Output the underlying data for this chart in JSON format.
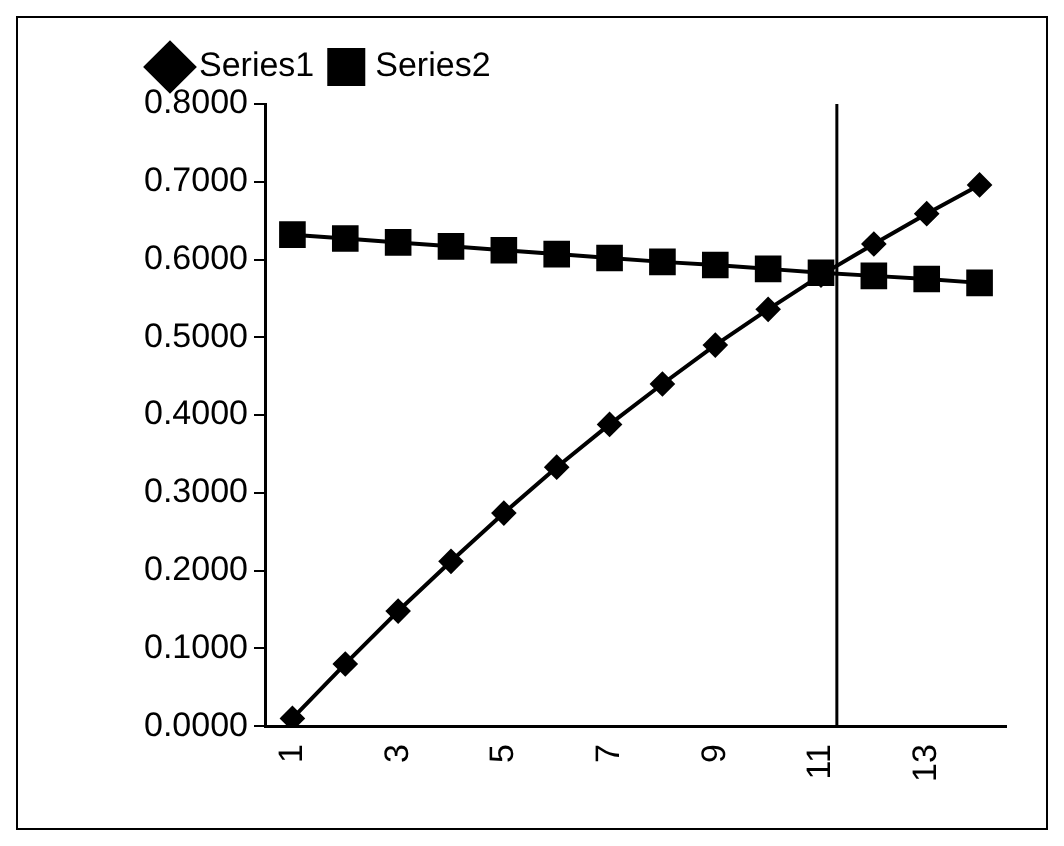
{
  "chart_data": {
    "type": "line",
    "x": [
      1,
      2,
      3,
      4,
      5,
      6,
      7,
      8,
      9,
      10,
      11,
      12,
      13,
      14
    ],
    "xlim": [
      0.5,
      14.5
    ],
    "xticks": [
      1,
      3,
      5,
      7,
      9,
      11,
      13
    ],
    "ylim": [
      0,
      0.8
    ],
    "yticks": [
      {
        "value": 0,
        "label": "0.0000"
      },
      {
        "value": 0.1,
        "label": "0.1000"
      },
      {
        "value": 0.2,
        "label": "0.2000"
      },
      {
        "value": 0.3,
        "label": "0.3000"
      },
      {
        "value": 0.4,
        "label": "0.4000"
      },
      {
        "value": 0.5,
        "label": "0.5000"
      },
      {
        "value": 0.6,
        "label": "0.6000"
      },
      {
        "value": 0.7,
        "label": "0.7000"
      },
      {
        "value": 0.8,
        "label": "0.8000"
      }
    ],
    "series": [
      {
        "name": "Series1",
        "color": "#000000",
        "marker": "diamond",
        "values": [
          0.01,
          0.08,
          0.148,
          0.212,
          0.274,
          0.333,
          0.388,
          0.44,
          0.49,
          0.536,
          0.58,
          0.62,
          0.659,
          0.696
        ]
      },
      {
        "name": "Series2",
        "color": "#000000",
        "marker": "square",
        "values": [
          0.632,
          0.627,
          0.622,
          0.617,
          0.612,
          0.607,
          0.602,
          0.597,
          0.593,
          0.588,
          0.583,
          0.579,
          0.575,
          0.57
        ]
      }
    ],
    "ref_lines": [
      {
        "axis": "x",
        "value": 11.3,
        "color": "#000000"
      }
    ],
    "grid": false,
    "legend": "top left"
  }
}
